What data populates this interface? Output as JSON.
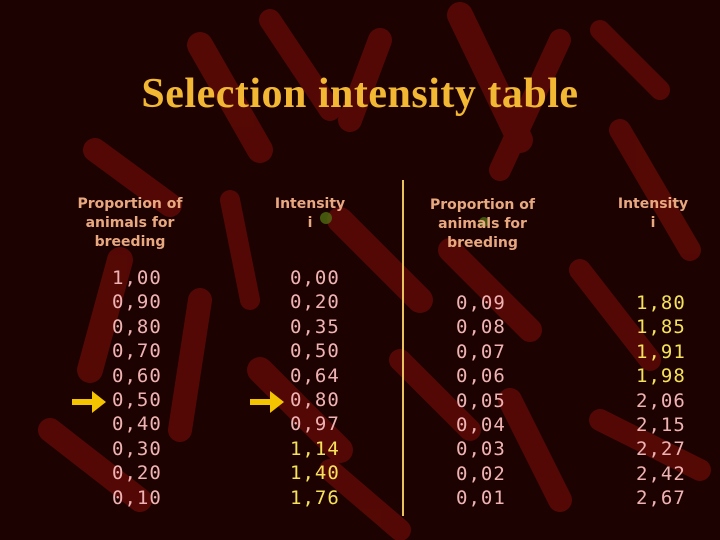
{
  "title": "Selection intensity table",
  "headers": {
    "left_proportion": [
      "Proportion of",
      "animals for",
      "breeding"
    ],
    "left_intensity": [
      "Intensity",
      "i"
    ],
    "right_proportion": [
      "Proportion of",
      "animals for",
      "breeding"
    ],
    "right_intensity": [
      "Intensity",
      "i"
    ]
  },
  "columns": {
    "left_proportion": [
      "1,00",
      "0,90",
      "0,80",
      "0,70",
      "0,60",
      "0,50",
      "0,40",
      "0,30",
      "0,20",
      "0,10"
    ],
    "left_intensity": [
      "0,00",
      "0,20",
      "0,35",
      "0,50",
      "0,64",
      "0,80",
      "0,97",
      "1,14",
      "1,40",
      "1,76"
    ],
    "right_proportion": [
      "0,09",
      "0,08",
      "0,07",
      "0,06",
      "0,05",
      "0,04",
      "0,03",
      "0,02",
      "0,01"
    ],
    "right_intensity": [
      "1,80",
      "1,85",
      "1,91",
      "1,98",
      "2,06",
      "2,15",
      "2,27",
      "2,42",
      "2,67"
    ]
  },
  "colors": {
    "title": "#f2b733",
    "header": "#e8a880",
    "value_pink": "#efb3b3",
    "value_yellow": "#f5e25a",
    "arrow": "#f5c400",
    "divider": "#e9c25c"
  },
  "icons": {
    "row_marker": "arrow-right-icon"
  }
}
